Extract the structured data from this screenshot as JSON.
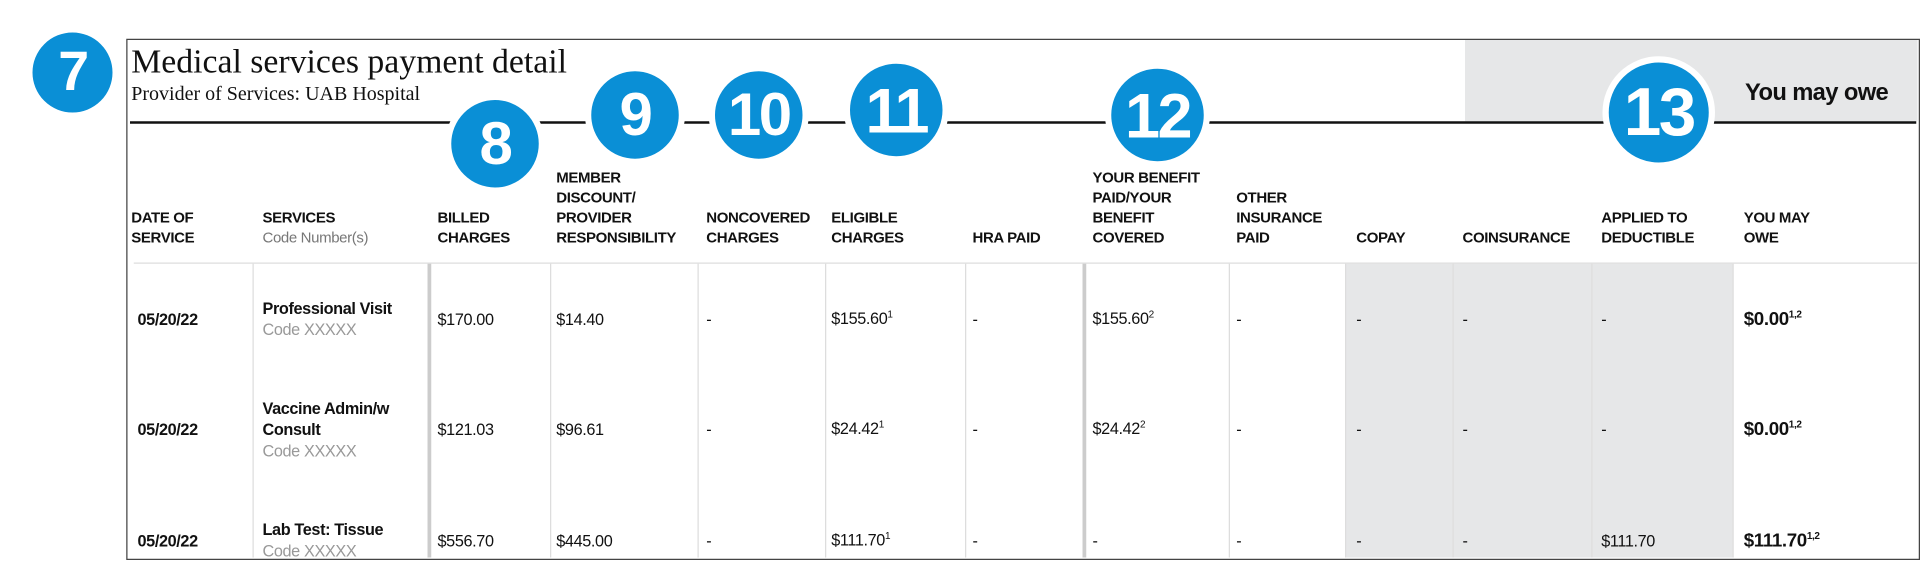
{
  "badges": [
    "7",
    "8",
    "9",
    "10",
    "11",
    "12",
    "13"
  ],
  "header": {
    "title": "Medical services payment detail",
    "subtitle": "Provider of Services: UAB Hospital",
    "owe_banner": "You may owe"
  },
  "table": {
    "columns": [
      {
        "lines": [
          "DATE OF",
          "SERVICE"
        ]
      },
      {
        "lines": [
          "SERVICES"
        ],
        "sub": "Code Number(s)"
      },
      {
        "lines": [
          "BILLED",
          "CHARGES"
        ]
      },
      {
        "lines": [
          "MEMBER",
          "DISCOUNT/",
          "PROVIDER",
          "RESPONSIBILITY"
        ]
      },
      {
        "lines": [
          "NONCOVERED",
          "CHARGES"
        ]
      },
      {
        "lines": [
          "ELIGIBLE",
          "CHARGES"
        ]
      },
      {
        "lines": [
          "HRA PAID"
        ]
      },
      {
        "lines": [
          "YOUR BENEFIT",
          "PAID/YOUR",
          "BENEFIT",
          "COVERED"
        ]
      },
      {
        "lines": [
          "OTHER",
          "INSURANCE",
          "PAID"
        ]
      },
      {
        "lines": [
          "COPAY"
        ]
      },
      {
        "lines": [
          "COINSURANCE"
        ]
      },
      {
        "lines": [
          "APPLIED TO",
          "DEDUCTIBLE"
        ]
      },
      {
        "lines": [
          "YOU MAY",
          "OWE"
        ]
      }
    ],
    "rows": [
      [
        {
          "text": "05/20/22"
        },
        {
          "lines": [
            "Professional Visit"
          ],
          "code": "Code XXXXX"
        },
        {
          "text": "$170.00"
        },
        {
          "text": "$14.40"
        },
        {
          "text": "-"
        },
        {
          "text": "$155.60",
          "sup": "1"
        },
        {
          "text": "-"
        },
        {
          "text": "$155.60",
          "sup": "2"
        },
        {
          "text": "-"
        },
        {
          "text": "-"
        },
        {
          "text": "-"
        },
        {
          "text": "-"
        },
        {
          "text": "$0.00",
          "sup": "1,2"
        }
      ],
      [
        {
          "text": "05/20/22"
        },
        {
          "lines": [
            "Vaccine Admin/w",
            "Consult"
          ],
          "code": "Code XXXXX"
        },
        {
          "text": "$121.03"
        },
        {
          "text": "$96.61"
        },
        {
          "text": "-"
        },
        {
          "text": "$24.42",
          "sup": "1"
        },
        {
          "text": "-"
        },
        {
          "text": "$24.42",
          "sup": "2"
        },
        {
          "text": "-"
        },
        {
          "text": "-"
        },
        {
          "text": "-"
        },
        {
          "text": "-"
        },
        {
          "text": "$0.00",
          "sup": "1,2"
        }
      ],
      [
        {
          "text": "05/20/22"
        },
        {
          "lines": [
            "Lab Test: Tissue"
          ],
          "code": "Code XXXXX"
        },
        {
          "text": "$556.70"
        },
        {
          "text": "$445.00"
        },
        {
          "text": "-"
        },
        {
          "text": "$111.70",
          "sup": "1"
        },
        {
          "text": "-"
        },
        {
          "text": "-"
        },
        {
          "text": "-"
        },
        {
          "text": "-"
        },
        {
          "text": "-"
        },
        {
          "text": "$111.70"
        },
        {
          "text": "$111.70",
          "sup": "1,2"
        }
      ]
    ]
  }
}
